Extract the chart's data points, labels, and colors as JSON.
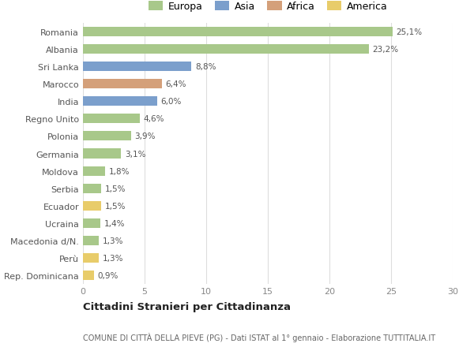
{
  "countries": [
    "Romania",
    "Albania",
    "Sri Lanka",
    "Marocco",
    "India",
    "Regno Unito",
    "Polonia",
    "Germania",
    "Moldova",
    "Serbia",
    "Ecuador",
    "Ucraina",
    "Macedonia d/N.",
    "Perù",
    "Rep. Dominicana"
  ],
  "values": [
    25.1,
    23.2,
    8.8,
    6.4,
    6.0,
    4.6,
    3.9,
    3.1,
    1.8,
    1.5,
    1.5,
    1.4,
    1.3,
    1.3,
    0.9
  ],
  "continents": [
    "Europa",
    "Europa",
    "Asia",
    "Africa",
    "Asia",
    "Europa",
    "Europa",
    "Europa",
    "Europa",
    "Europa",
    "America",
    "Europa",
    "Europa",
    "America",
    "America"
  ],
  "colors": {
    "Europa": "#a8c88a",
    "Asia": "#7b9fcc",
    "Africa": "#d4a07a",
    "America": "#e8cc6a"
  },
  "legend_labels": [
    "Europa",
    "Asia",
    "Africa",
    "America"
  ],
  "title": "Cittadini Stranieri per Cittadinanza",
  "subtitle": "COMUNE DI CITTÀ DELLA PIEVE (PG) - Dati ISTAT al 1° gennaio - Elaborazione TUTTITALIA.IT",
  "xlim": [
    0,
    30
  ],
  "xticks": [
    0,
    5,
    10,
    15,
    20,
    25,
    30
  ],
  "bg_color": "#ffffff",
  "grid_color": "#dddddd"
}
